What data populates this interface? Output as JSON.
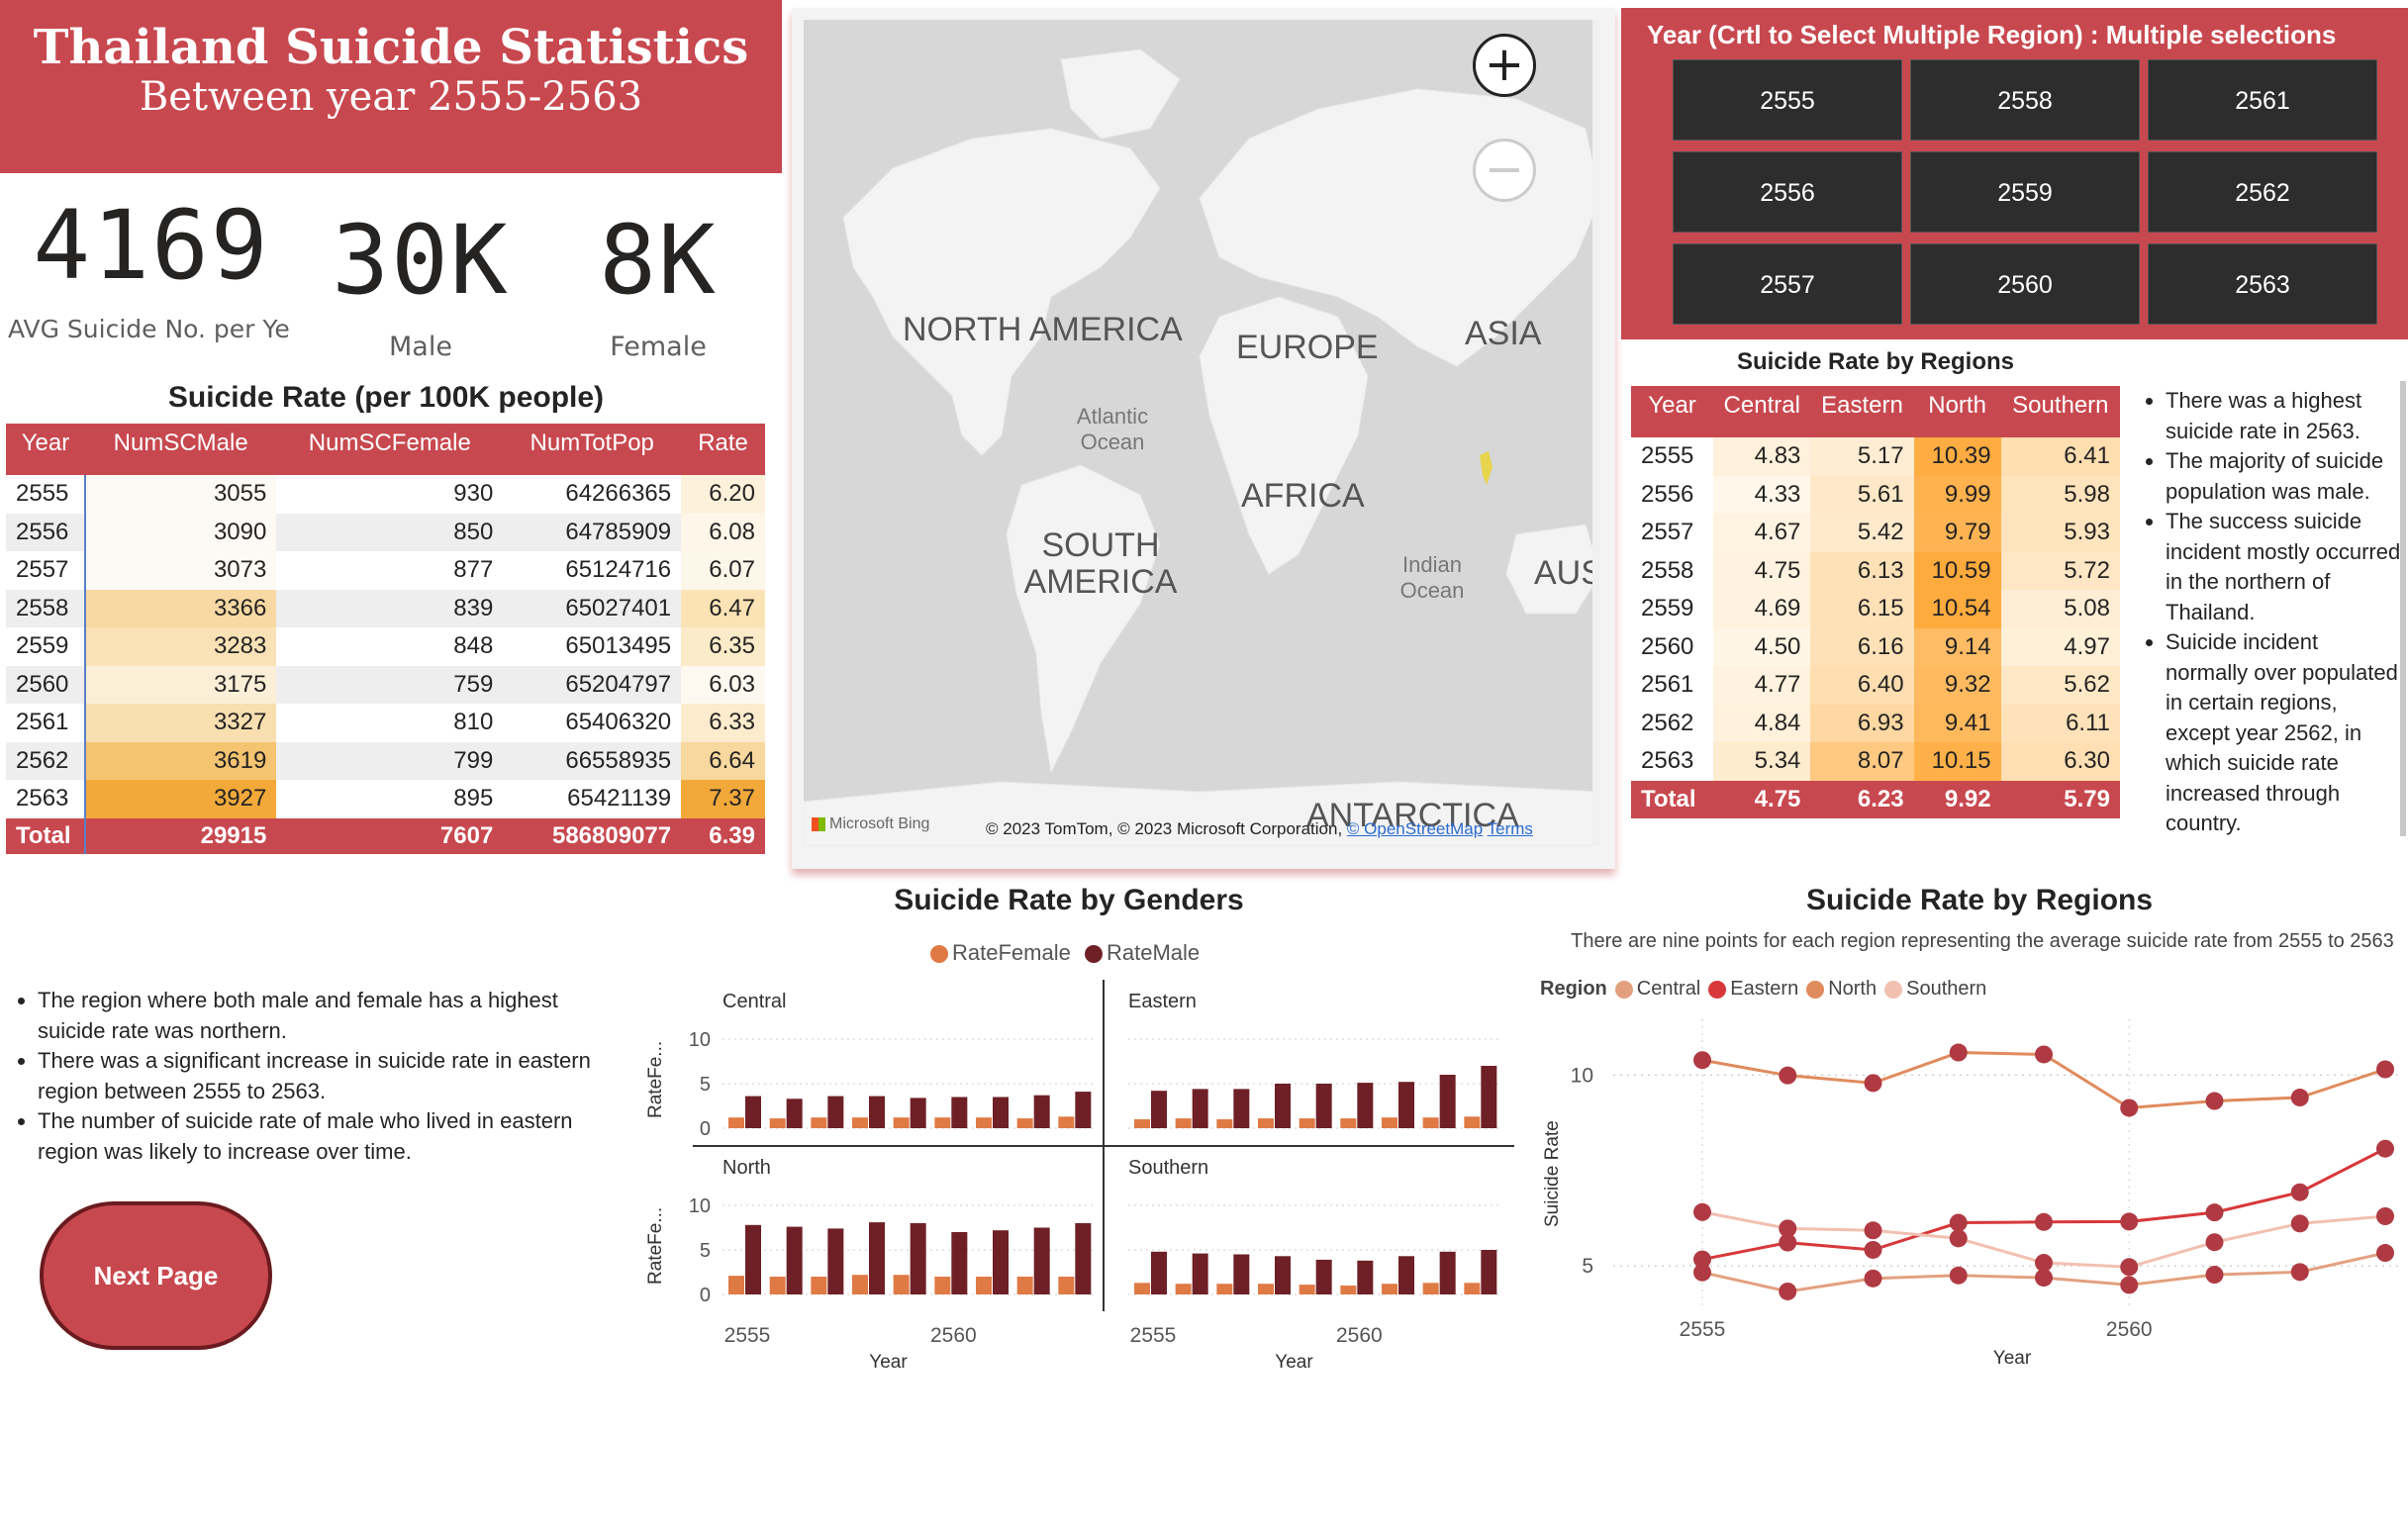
{
  "header": {
    "title": "Thailand Suicide Statistics",
    "subtitle": "Between year 2555-2563"
  },
  "kpis": [
    {
      "value": "4169",
      "label": "AVG Suicide No. per Ye"
    },
    {
      "value": "30K",
      "label": "Male"
    },
    {
      "value": "8K",
      "label": "Female"
    }
  ],
  "table1": {
    "title": "Suicide Rate (per 100K people)",
    "headers": [
      "Year",
      "NumSCMale",
      "NumSCFemale",
      "NumTotPop",
      "Rate"
    ],
    "rows": [
      [
        "2555",
        "3055",
        "930",
        "64266365",
        "6.20"
      ],
      [
        "2556",
        "3090",
        "850",
        "64785909",
        "6.08"
      ],
      [
        "2557",
        "3073",
        "877",
        "65124716",
        "6.07"
      ],
      [
        "2558",
        "3366",
        "839",
        "65027401",
        "6.47"
      ],
      [
        "2559",
        "3283",
        "848",
        "65013495",
        "6.35"
      ],
      [
        "2560",
        "3175",
        "759",
        "65204797",
        "6.03"
      ],
      [
        "2561",
        "3327",
        "810",
        "65406320",
        "6.33"
      ],
      [
        "2562",
        "3619",
        "799",
        "66558935",
        "6.64"
      ],
      [
        "2563",
        "3927",
        "895",
        "65421139",
        "7.37"
      ]
    ],
    "total": [
      "Total",
      "29915",
      "7607",
      "586809077",
      "6.39"
    ],
    "male_heat": [
      "#fdfaf3",
      "#fdfaf5",
      "#fdfaf4",
      "#f8d9a3",
      "#f9e2b6",
      "#fcefd8",
      "#f9dfb0",
      "#f5c470",
      "#f2a93a"
    ],
    "rate_heat": [
      "#fdf1dc",
      "#fdf6e9",
      "#fdf7ea",
      "#fbe3b5",
      "#fcebc9",
      "#fdf9f0",
      "#fceccd",
      "#f8d89e",
      "#f2a93a"
    ]
  },
  "map": {
    "labels": [
      {
        "text": "NORTH",
        "x": 1.0
      },
      {
        "text": "AMERICA",
        "x": 1.0
      }
    ],
    "region_labels": [
      "NORTH AMERICA",
      "EUROPE",
      "ASIA",
      "Atlantic Ocean",
      "AFRICA",
      "SOUTH AMERICA",
      "Indian Ocean",
      "AUS",
      "ANTARCTICA"
    ],
    "attribution": "© 2023 TomTom, © 2023 Microsoft Corporation,",
    "osm": "© OpenStreetMap",
    "terms": "Terms",
    "brand": "Microsoft Bing",
    "zoom_in": "+",
    "zoom_out": "−"
  },
  "slicer": {
    "title": "Year (Crtl to Select Multiple Region) : Multiple selections",
    "years": [
      "2555",
      "2558",
      "2561",
      "2556",
      "2559",
      "2562",
      "2557",
      "2560",
      "2563"
    ]
  },
  "table2": {
    "title": "Suicide Rate by Regions",
    "headers": [
      "Year",
      "Central",
      "Eastern",
      "North",
      "Southern"
    ],
    "rows": [
      [
        "2555",
        "4.83",
        "5.17",
        "10.39",
        "6.41"
      ],
      [
        "2556",
        "4.33",
        "5.61",
        "9.99",
        "5.98"
      ],
      [
        "2557",
        "4.67",
        "5.42",
        "9.79",
        "5.93"
      ],
      [
        "2558",
        "4.75",
        "6.13",
        "10.59",
        "5.72"
      ],
      [
        "2559",
        "4.69",
        "6.15",
        "10.54",
        "5.08"
      ],
      [
        "2560",
        "4.50",
        "6.16",
        "9.14",
        "4.97"
      ],
      [
        "2561",
        "4.77",
        "6.40",
        "9.32",
        "5.62"
      ],
      [
        "2562",
        "4.84",
        "6.93",
        "9.41",
        "6.11"
      ],
      [
        "2563",
        "5.34",
        "8.07",
        "10.15",
        "6.30"
      ]
    ],
    "total": [
      "Total",
      "4.75",
      "6.23",
      "9.92",
      "5.79"
    ]
  },
  "notes_right": [
    "There was a highest suicide rate in 2563.",
    "The  majority of suicide population was male.",
    "The success suicide incident mostly occurred in the northern of Thailand.",
    "Suicide incident normally over populated in certain regions, except year 2562, in which suicide rate increased through country."
  ],
  "notes_left": [
    "The region where both male and female has a highest suicide rate was northern.",
    "There was a significant increase in suicide rate in eastern region between 2555 to 2563.",
    "The number of suicide rate of male who lived in eastern region was likely to increase over time."
  ],
  "next_button": "Next Page",
  "chart_data": [
    {
      "type": "bar",
      "title": "Suicide Rate by Genders",
      "legend": [
        "RateFemale",
        "RateMale"
      ],
      "colors": {
        "RateFemale": "#e07a45",
        "RateMale": "#6e2026"
      },
      "ylabel": "RateFe...",
      "xlabel": "Year",
      "ylim": [
        0,
        10
      ],
      "yticks": [
        "10",
        "5",
        "0"
      ],
      "xticks": [
        "2555",
        "2560"
      ],
      "x": [
        2555,
        2556,
        2557,
        2558,
        2559,
        2560,
        2561,
        2562,
        2563
      ],
      "panels": [
        {
          "name": "Central",
          "female": [
            1.2,
            1.1,
            1.2,
            1.2,
            1.2,
            1.2,
            1.2,
            1.1,
            1.3
          ],
          "male": [
            3.6,
            3.3,
            3.6,
            3.6,
            3.4,
            3.5,
            3.5,
            3.7,
            4.1
          ]
        },
        {
          "name": "Eastern",
          "female": [
            1.0,
            1.1,
            1.0,
            1.1,
            1.1,
            1.1,
            1.2,
            1.2,
            1.3
          ],
          "male": [
            4.2,
            4.4,
            4.4,
            5.0,
            5.0,
            5.1,
            5.2,
            6.0,
            7.0
          ]
        },
        {
          "name": "North",
          "female": [
            2.1,
            2.0,
            2.0,
            2.2,
            2.2,
            2.0,
            2.0,
            2.0,
            2.0
          ],
          "male": [
            7.8,
            7.6,
            7.4,
            8.1,
            8.0,
            7.0,
            7.2,
            7.5,
            8.0
          ]
        },
        {
          "name": "Southern",
          "female": [
            1.3,
            1.2,
            1.2,
            1.2,
            1.1,
            1.0,
            1.2,
            1.3,
            1.3
          ],
          "male": [
            4.8,
            4.6,
            4.5,
            4.3,
            3.9,
            3.8,
            4.3,
            4.8,
            5.0
          ]
        }
      ]
    },
    {
      "type": "line",
      "title": "Suicide Rate by Regions",
      "subtitle": "There are nine points for each region representing the average suicide rate from 2555 to 2563",
      "legend_title": "Region",
      "xlabel": "Year",
      "ylabel": "Suicide Rate",
      "ylim": [
        4.2,
        11.2
      ],
      "yticks": [
        10,
        5
      ],
      "xticks": [
        2555,
        2560
      ],
      "x": [
        2555,
        2556,
        2557,
        2558,
        2559,
        2560,
        2561,
        2562,
        2563
      ],
      "series": [
        {
          "name": "Central",
          "color": "#e3a07f",
          "values": [
            4.83,
            4.33,
            4.67,
            4.75,
            4.69,
            4.5,
            4.77,
            4.84,
            5.34
          ]
        },
        {
          "name": "Eastern",
          "color": "#d8383a",
          "values": [
            5.17,
            5.61,
            5.42,
            6.13,
            6.15,
            6.16,
            6.4,
            6.93,
            8.07
          ]
        },
        {
          "name": "North",
          "color": "#e08b5d",
          "values": [
            10.39,
            9.99,
            9.79,
            10.59,
            10.54,
            9.14,
            9.32,
            9.41,
            10.15
          ]
        },
        {
          "name": "Southern",
          "color": "#f2c0b0",
          "values": [
            6.41,
            5.98,
            5.93,
            5.72,
            5.08,
            4.97,
            5.62,
            6.11,
            6.3
          ]
        }
      ],
      "marker_color": "#b03a43"
    }
  ]
}
